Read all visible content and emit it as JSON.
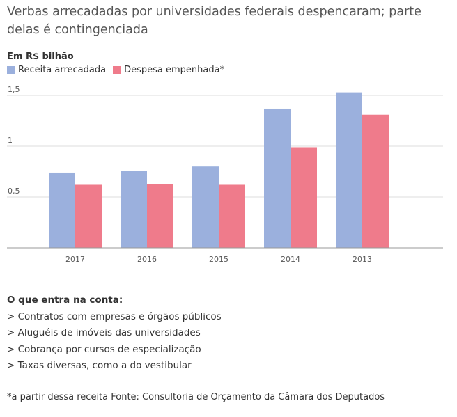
{
  "title": "Verbas arrecadadas por universidades federais despencaram; parte delas é contingenciada",
  "notes": {
    "heading": "O que entra na conta:",
    "items": [
      "> Contratos com empresas e órgãos públicos",
      "> Aluguéis de imóveis das universidades",
      "> Cobrança por cursos de especialização",
      "> Taxas diversas, como a do vestibular"
    ]
  },
  "footnote": "*a partir dessa receita Fonte: Consultoria de Orçamento da Câmara dos Deputados",
  "colors": {
    "receita": "#9bb0dd",
    "despesa": "#ef7b8b",
    "grid": "#dddddd",
    "axis": "#999999"
  },
  "chart_data": {
    "type": "bar",
    "unit_label": "Em R$ bilhão",
    "categories": [
      "2017",
      "2016",
      "2015",
      "2014",
      "2013"
    ],
    "series": [
      {
        "name": "Receita arrecadada",
        "values": [
          0.74,
          0.76,
          0.8,
          1.37,
          1.53
        ]
      },
      {
        "name": "Despesa empenhada*",
        "values": [
          0.62,
          0.63,
          0.62,
          0.99,
          1.31
        ]
      }
    ],
    "yticks": [
      "0,5",
      "1",
      "1,5"
    ],
    "ytick_values": [
      0.5,
      1,
      1.5
    ],
    "ylim": [
      0,
      1.5
    ],
    "grid": true,
    "legend": "top-left"
  }
}
